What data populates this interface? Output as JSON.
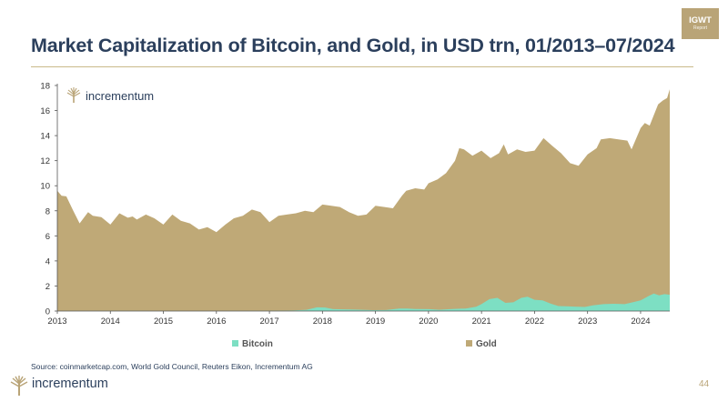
{
  "header": {
    "title": "Market Capitalization of Bitcoin, and Gold, in USD trn, 01/2013–07/2024",
    "badge_title": "IGWT",
    "badge_sub": "Report"
  },
  "chart_logo_text": "incrementum",
  "footer": {
    "source": "Source: coinmarketcap.com, World Gold Council, Reuters Eikon, Incrementum AG",
    "brand": "incrementum",
    "page_number": "44"
  },
  "colors": {
    "bitcoin": "#7ddfc3",
    "gold": "#bfa977",
    "title": "#2b3f5c",
    "accent": "#b9a477"
  },
  "chart_data": {
    "type": "area",
    "title": "Market Capitalization of Bitcoin, and Gold, in USD trn, 01/2013–07/2024",
    "xlabel": "",
    "ylabel": "",
    "xlim": [
      2013.0,
      2024.55
    ],
    "ylim": [
      0,
      18
    ],
    "yticks": [
      0,
      2,
      4,
      6,
      8,
      10,
      12,
      14,
      16,
      18
    ],
    "xticks": [
      "2013",
      "2014",
      "2015",
      "2016",
      "2017",
      "2018",
      "2019",
      "2020",
      "2021",
      "2022",
      "2023",
      "2024"
    ],
    "legend_position": "bottom",
    "grid": false,
    "series": [
      {
        "name": "Bitcoin",
        "stacked": false,
        "points": [
          [
            2013.0,
            0.0
          ],
          [
            2013.9,
            0.01
          ],
          [
            2014.5,
            0.01
          ],
          [
            2015.5,
            0.003
          ],
          [
            2016.5,
            0.01
          ],
          [
            2017.0,
            0.02
          ],
          [
            2017.45,
            0.04
          ],
          [
            2017.7,
            0.1
          ],
          [
            2017.9,
            0.3
          ],
          [
            2018.05,
            0.28
          ],
          [
            2018.2,
            0.15
          ],
          [
            2018.5,
            0.12
          ],
          [
            2018.75,
            0.1
          ],
          [
            2018.95,
            0.07
          ],
          [
            2019.2,
            0.08
          ],
          [
            2019.45,
            0.2
          ],
          [
            2019.6,
            0.2
          ],
          [
            2019.75,
            0.17
          ],
          [
            2020.0,
            0.15
          ],
          [
            2020.2,
            0.1
          ],
          [
            2020.45,
            0.17
          ],
          [
            2020.7,
            0.2
          ],
          [
            2020.9,
            0.35
          ],
          [
            2021.0,
            0.55
          ],
          [
            2021.15,
            0.95
          ],
          [
            2021.3,
            1.05
          ],
          [
            2021.45,
            0.65
          ],
          [
            2021.6,
            0.7
          ],
          [
            2021.75,
            1.05
          ],
          [
            2021.87,
            1.15
          ],
          [
            2022.0,
            0.9
          ],
          [
            2022.15,
            0.85
          ],
          [
            2022.3,
            0.6
          ],
          [
            2022.45,
            0.4
          ],
          [
            2022.6,
            0.38
          ],
          [
            2022.8,
            0.35
          ],
          [
            2022.95,
            0.33
          ],
          [
            2023.1,
            0.45
          ],
          [
            2023.3,
            0.55
          ],
          [
            2023.5,
            0.58
          ],
          [
            2023.7,
            0.55
          ],
          [
            2023.85,
            0.7
          ],
          [
            2024.0,
            0.85
          ],
          [
            2024.15,
            1.2
          ],
          [
            2024.25,
            1.4
          ],
          [
            2024.35,
            1.25
          ],
          [
            2024.45,
            1.35
          ],
          [
            2024.55,
            1.3
          ]
        ]
      },
      {
        "name": "Gold",
        "stacked": false,
        "points": [
          [
            2013.0,
            9.6
          ],
          [
            2013.08,
            9.2
          ],
          [
            2013.17,
            9.15
          ],
          [
            2013.3,
            8.0
          ],
          [
            2013.42,
            7.0
          ],
          [
            2013.58,
            7.9
          ],
          [
            2013.67,
            7.6
          ],
          [
            2013.83,
            7.5
          ],
          [
            2014.0,
            6.9
          ],
          [
            2014.17,
            7.8
          ],
          [
            2014.33,
            7.45
          ],
          [
            2014.42,
            7.55
          ],
          [
            2014.5,
            7.3
          ],
          [
            2014.67,
            7.7
          ],
          [
            2014.83,
            7.4
          ],
          [
            2015.0,
            6.9
          ],
          [
            2015.17,
            7.7
          ],
          [
            2015.33,
            7.2
          ],
          [
            2015.5,
            7.0
          ],
          [
            2015.67,
            6.5
          ],
          [
            2015.83,
            6.7
          ],
          [
            2016.0,
            6.3
          ],
          [
            2016.17,
            6.9
          ],
          [
            2016.33,
            7.4
          ],
          [
            2016.5,
            7.6
          ],
          [
            2016.67,
            8.1
          ],
          [
            2016.83,
            7.9
          ],
          [
            2017.0,
            7.1
          ],
          [
            2017.17,
            7.6
          ],
          [
            2017.33,
            7.7
          ],
          [
            2017.5,
            7.8
          ],
          [
            2017.67,
            8.0
          ],
          [
            2017.83,
            7.9
          ],
          [
            2018.0,
            8.5
          ],
          [
            2018.17,
            8.4
          ],
          [
            2018.33,
            8.3
          ],
          [
            2018.5,
            7.9
          ],
          [
            2018.67,
            7.6
          ],
          [
            2018.83,
            7.7
          ],
          [
            2019.0,
            8.4
          ],
          [
            2019.17,
            8.3
          ],
          [
            2019.33,
            8.2
          ],
          [
            2019.5,
            9.2
          ],
          [
            2019.58,
            9.6
          ],
          [
            2019.75,
            9.8
          ],
          [
            2019.92,
            9.7
          ],
          [
            2020.0,
            10.2
          ],
          [
            2020.17,
            10.5
          ],
          [
            2020.33,
            11.0
          ],
          [
            2020.5,
            12.0
          ],
          [
            2020.58,
            13.0
          ],
          [
            2020.67,
            12.9
          ],
          [
            2020.83,
            12.4
          ],
          [
            2021.0,
            12.8
          ],
          [
            2021.17,
            12.2
          ],
          [
            2021.33,
            12.6
          ],
          [
            2021.42,
            13.3
          ],
          [
            2021.5,
            12.5
          ],
          [
            2021.67,
            12.9
          ],
          [
            2021.83,
            12.7
          ],
          [
            2022.0,
            12.8
          ],
          [
            2022.17,
            13.8
          ],
          [
            2022.33,
            13.2
          ],
          [
            2022.5,
            12.6
          ],
          [
            2022.67,
            11.8
          ],
          [
            2022.83,
            11.6
          ],
          [
            2023.0,
            12.5
          ],
          [
            2023.17,
            13.0
          ],
          [
            2023.25,
            13.7
          ],
          [
            2023.42,
            13.8
          ],
          [
            2023.58,
            13.7
          ],
          [
            2023.75,
            13.6
          ],
          [
            2023.83,
            12.9
          ],
          [
            2024.0,
            14.6
          ],
          [
            2024.08,
            15.0
          ],
          [
            2024.17,
            14.8
          ],
          [
            2024.33,
            16.5
          ],
          [
            2024.42,
            16.8
          ],
          [
            2024.5,
            17.0
          ],
          [
            2024.55,
            17.7
          ]
        ]
      }
    ]
  }
}
